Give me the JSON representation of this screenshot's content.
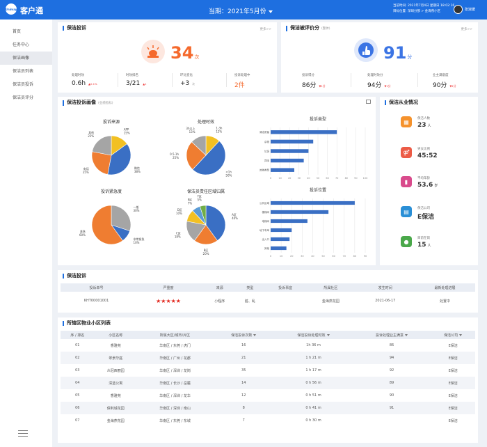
{
  "header": {
    "logo_text": "Unimay",
    "app_name": "客户通",
    "period_label": "当期：2021年5月份",
    "date_line": "当前时间: 2021年7月4日  星期日  18:02:16",
    "location_line": "目标位置: 深圳分部 > 金海燕小区",
    "username": "张淑媛"
  },
  "sidebar": {
    "items": [
      {
        "label": "首页"
      },
      {
        "label": "任务中心"
      },
      {
        "label": "保洁画像"
      },
      {
        "label": "保洁员列表"
      },
      {
        "label": "保洁员投诉"
      },
      {
        "label": "保洁员评分"
      }
    ]
  },
  "complaint": {
    "title": "保洁投诉",
    "more": "更多>>",
    "count": "34",
    "unit": "次",
    "metrics": [
      {
        "label": "处理时效",
        "value": "0.6h",
        "delta": "0.1%"
      },
      {
        "label": "时效排名",
        "value": "3/21",
        "delta": "1"
      },
      {
        "label": "环比变化",
        "value": "+3",
        "delta": "次"
      },
      {
        "label": "投诉处理中",
        "value": "2件",
        "delta": ""
      }
    ]
  },
  "rating": {
    "title": "保洁被评价分",
    "subtitle": "(整体)",
    "more": "更多>>",
    "score": "91",
    "unit": "分",
    "metrics": [
      {
        "label": "投诉得分",
        "value": "86分",
        "delta": "1分"
      },
      {
        "label": "处理时效分",
        "value": "94分",
        "delta": "1分"
      },
      {
        "label": "业主满意度",
        "value": "90分",
        "delta": "1分"
      }
    ]
  },
  "portrait": {
    "title": "保洁投诉画像",
    "subtitle": "(业绩指标)",
    "expand_icon": "fullscreen-icon"
  },
  "staff": {
    "title": "保洁从业情况",
    "items": [
      {
        "label": "保洁人数",
        "value": "23",
        "unit": "人",
        "color": "#f5922c",
        "icon": "building-icon"
      },
      {
        "label": "男女比例",
        "value": "45:52",
        "unit": "",
        "color": "#ec5b46",
        "icon": "people-icon"
      },
      {
        "label": "平均年龄",
        "value": "53.6",
        "unit": "岁",
        "color": "#d94b8c",
        "icon": "bar-chart-icon"
      },
      {
        "label": "保洁公司",
        "value": "E保洁",
        "unit": "",
        "color": "#2a8fd6",
        "icon": "company-icon"
      },
      {
        "label": "目前在岗",
        "value": "15",
        "unit": "人",
        "color": "#4aa84a",
        "icon": "person-on-duty-icon"
      }
    ]
  },
  "chart_data": [
    {
      "type": "pie",
      "title": "投诉来源",
      "slices": [
        {
          "label": "APP",
          "value": 15,
          "pct": "15%",
          "color": "#f2c023"
        },
        {
          "label": "微信",
          "value": 38,
          "pct": "38%",
          "color": "#3a6fc4"
        },
        {
          "label": "电话",
          "value": 25,
          "pct": "25%",
          "color": "#ef7d31"
        },
        {
          "label": "其他",
          "value": 22,
          "pct": "22%",
          "color": "#a5a5a5"
        }
      ]
    },
    {
      "type": "pie",
      "title": "处理时效",
      "slices": [
        {
          "label": "1-3h",
          "value": 12,
          "pct": "12%",
          "color": "#f2c023"
        },
        {
          "label": "<1h",
          "value": 50,
          "pct": "50%",
          "color": "#3a6fc4"
        },
        {
          "label": "0.5-1h",
          "value": 25,
          "pct": "25%",
          "color": "#ef7d31"
        },
        {
          "label": "3h以上",
          "value": 13,
          "pct": "13%",
          "color": "#a5a5a5"
        }
      ]
    },
    {
      "type": "bar",
      "orientation": "horizontal",
      "title": "投诉类型",
      "categories": [
        "清洁质量",
        "杂物",
        "垃圾",
        "异味",
        "其他类型"
      ],
      "values": [
        70,
        45,
        40,
        35,
        25
      ],
      "xlim": [
        0,
        100
      ],
      "ticks": [
        0,
        10,
        20,
        30,
        40,
        50,
        60,
        70,
        80,
        90,
        100
      ]
    },
    {
      "type": "pie",
      "title": "投诉紧急度",
      "slices": [
        {
          "label": "一般",
          "value": 30,
          "pct": "30%",
          "color": "#a5a5a5"
        },
        {
          "label": "非常紧急",
          "value": 10,
          "pct": "10%",
          "color": "#3a6fc4"
        },
        {
          "label": "紧急",
          "value": 60,
          "pct": "60%",
          "color": "#ef7d31"
        }
      ]
    },
    {
      "type": "pie",
      "title": "保洁员责任区域归属",
      "slices": [
        {
          "label": "A区",
          "value": 40,
          "pct": "40%",
          "color": "#3a6fc4"
        },
        {
          "label": "B区",
          "value": 20,
          "pct": "20%",
          "color": "#ef7d31"
        },
        {
          "label": "C区",
          "value": 18,
          "pct": "18%",
          "color": "#a5a5a5"
        },
        {
          "label": "D区",
          "value": 10,
          "pct": "10%",
          "color": "#f2c023"
        },
        {
          "label": "E区",
          "value": 7,
          "pct": "7%",
          "color": "#5b9bd5"
        },
        {
          "label": "F区",
          "value": 5,
          "pct": "5%",
          "color": "#70ad47"
        }
      ]
    },
    {
      "type": "bar",
      "orientation": "horizontal",
      "title": "投诉位置",
      "categories": [
        "公共区域",
        "楼梯间",
        "电梯间",
        "地下车库",
        "出入口",
        "其他"
      ],
      "values": [
        80,
        55,
        35,
        20,
        18,
        15
      ],
      "xlim": [
        0,
        90
      ],
      "ticks": [
        0,
        10,
        20,
        30,
        40,
        50,
        60,
        70,
        80,
        90
      ]
    }
  ],
  "complaint_table": {
    "title": "保洁投诉",
    "headers": [
      "投诉单号",
      "严重度",
      "来源",
      "类型",
      "投诉事宜",
      "所属社区",
      "发生时间",
      "最新处理进展"
    ],
    "row": [
      "KHT00001001",
      "★★★★★",
      "小程序",
      "脏、乱",
      "",
      "金海燕花园",
      "2021-06-17",
      "处置中"
    ]
  },
  "community_table": {
    "title": "所辖区物业小区列表",
    "headers": [
      "序 / 排名",
      "小区名称",
      "所属大区/城市/片区",
      "保洁投诉次数",
      "保洁投诉处理时效",
      "投诉处理业主满意",
      "保洁公司"
    ],
    "rows": [
      [
        "01",
        "香雅苑",
        "华南区 / 东莞 / 虎门",
        "16",
        "1h 36 m",
        "86",
        "E保洁"
      ],
      [
        "02",
        "翠景华庭",
        "华南区 / 广州 / 花都",
        "21",
        "1 h 21 m",
        "94",
        "E保洁"
      ],
      [
        "03",
        "众冠西丽园",
        "华南区 / 深圳 / 龙岗",
        "35",
        "1 h 17 m",
        "92",
        "E保洁"
      ],
      [
        "04",
        "深蓝公寓",
        "华南区 / 长沙 / 岳麓",
        "14",
        "0 h 56 m",
        "89",
        "E保洁"
      ],
      [
        "05",
        "香雅苑",
        "华南区 / 深圳 / 龙华",
        "12",
        "0 h 51 m",
        "90",
        "E保洁"
      ],
      [
        "06",
        "保利城花园",
        "华南区 / 深圳 / 南山",
        "8",
        "0 h 41 m",
        "91",
        "E保洁"
      ],
      [
        "07",
        "金海燕花园",
        "华南区 / 东莞 / 东城",
        "7",
        "0 h 30 m",
        "",
        "E保洁"
      ]
    ]
  }
}
